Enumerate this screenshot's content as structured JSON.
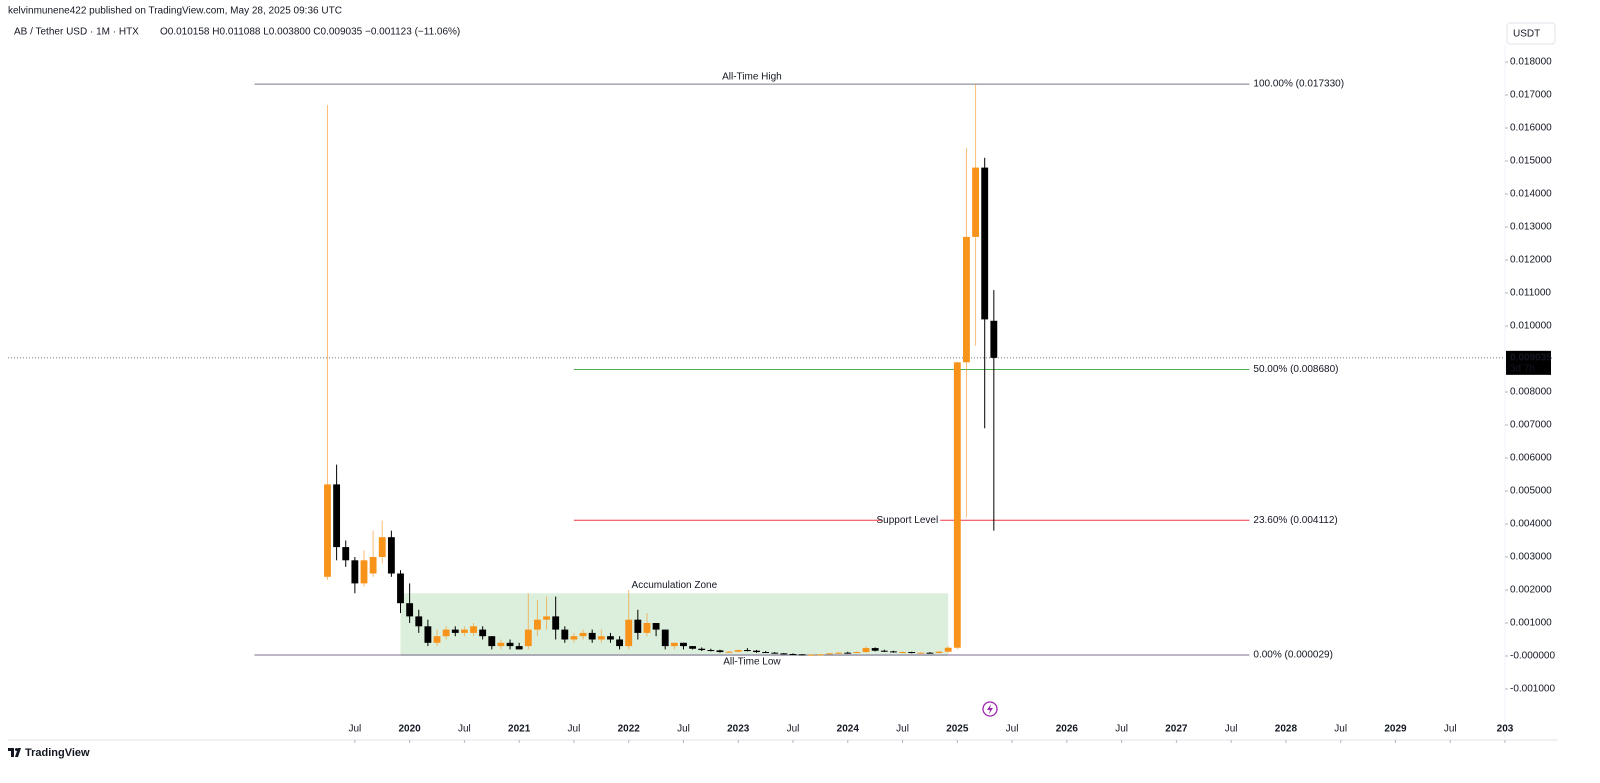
{
  "header": {
    "published": "kelvinmunene422 published on TradingView.com, May 28, 2025 09:36 UTC",
    "symbol": "AB / Tether USD · 1M · HTX",
    "ohlc": "O0.010158 H0.011088 L0.003800 C0.009035 −0.001123 (−11.06%)",
    "currency": "USDT",
    "brand": "TradingView"
  },
  "chart_data": {
    "type": "candlestick",
    "x": [
      "2019-04",
      "2019-05",
      "2019-06",
      "2019-07",
      "2019-08",
      "2019-09",
      "2019-10",
      "2019-11",
      "2019-12",
      "2020-01",
      "2020-02",
      "2020-03",
      "2020-04",
      "2020-05",
      "2020-06",
      "2020-07",
      "2020-08",
      "2020-09",
      "2020-10",
      "2020-11",
      "2020-12",
      "2021-01",
      "2021-02",
      "2021-03",
      "2021-04",
      "2021-05",
      "2021-06",
      "2021-07",
      "2021-08",
      "2021-09",
      "2021-10",
      "2021-11",
      "2021-12",
      "2022-01",
      "2022-02",
      "2022-03",
      "2022-04",
      "2022-05",
      "2022-06",
      "2022-07",
      "2022-08",
      "2022-09",
      "2022-10",
      "2022-11",
      "2022-12",
      "2023-01",
      "2023-02",
      "2023-03",
      "2023-04",
      "2023-05",
      "2023-06",
      "2023-07",
      "2023-08",
      "2023-09",
      "2023-10",
      "2023-11",
      "2023-12",
      "2024-01",
      "2024-02",
      "2024-03",
      "2024-04",
      "2024-05",
      "2024-06",
      "2024-07",
      "2024-08",
      "2024-09",
      "2024-10",
      "2024-11",
      "2024-12",
      "2025-01",
      "2025-02",
      "2025-03",
      "2025-04",
      "2025-05"
    ],
    "open": [
      0.0024,
      0.0052,
      0.0033,
      0.0029,
      0.0022,
      0.0025,
      0.003,
      0.0036,
      0.0025,
      0.0016,
      0.0012,
      0.0009,
      0.0004,
      0.0006,
      0.0008,
      0.0007,
      0.0007,
      0.0008,
      0.0006,
      0.0003,
      0.0004,
      0.0003,
      0.0003,
      0.0008,
      0.0011,
      0.0012,
      0.0008,
      0.0005,
      0.0006,
      0.0007,
      0.0005,
      0.0006,
      0.0005,
      0.0003,
      0.0011,
      0.0007,
      0.001,
      0.0008,
      0.0003,
      0.0004,
      0.0003,
      0.00022,
      0.00018,
      0.00017,
      0.00012,
      0.00013,
      0.00018,
      0.00016,
      0.00012,
      0.0001,
      8e-05,
      6e-05,
      5e-05,
      4e-05,
      4e-05,
      5e-05,
      8e-05,
      0.0001,
      9e-05,
      0.00012,
      0.00024,
      0.00016,
      0.00014,
      0.00011,
      0.00012,
      9e-05,
      0.0001,
      9e-05,
      0.00013,
      0.00025,
      0.0089,
      0.0127,
      0.0148,
      0.010158
    ],
    "high": [
      0.0167,
      0.0058,
      0.0035,
      0.003,
      0.0032,
      0.0038,
      0.0041,
      0.0038,
      0.0026,
      0.0022,
      0.0014,
      0.0011,
      0.0008,
      0.0009,
      0.0009,
      0.0009,
      0.001,
      0.0009,
      0.0006,
      0.0005,
      0.0005,
      0.0004,
      0.0019,
      0.0017,
      0.0018,
      0.0018,
      0.0009,
      0.0007,
      0.0008,
      0.0008,
      0.0008,
      0.0007,
      0.0006,
      0.002,
      0.0014,
      0.0013,
      0.001,
      0.0008,
      0.0004,
      0.0004,
      0.0003,
      0.00026,
      0.00022,
      0.00019,
      0.00015,
      0.0002,
      0.00024,
      0.00018,
      0.00015,
      0.00012,
      9e-05,
      8e-05,
      6e-05,
      5e-05,
      6e-05,
      9e-05,
      0.00012,
      0.00013,
      0.00014,
      0.0003,
      0.00026,
      0.00019,
      0.00016,
      0.00014,
      0.00013,
      0.00012,
      0.00012,
      0.00015,
      0.0003,
      0.0089,
      0.0154,
      0.01733,
      0.0151,
      0.011088
    ],
    "low": [
      0.0023,
      0.0029,
      0.0027,
      0.0019,
      0.0021,
      0.0024,
      0.0028,
      0.0024,
      0.0013,
      0.001,
      0.0007,
      0.0003,
      0.0003,
      0.0005,
      0.0006,
      0.0006,
      0.0006,
      0.0005,
      0.0002,
      0.0002,
      0.0002,
      0.0002,
      0.0002,
      0.0006,
      0.0008,
      0.0005,
      0.0004,
      0.0004,
      0.0005,
      0.0004,
      0.0004,
      0.0004,
      0.0002,
      0.0002,
      0.0005,
      0.0006,
      0.0006,
      0.0002,
      0.0002,
      0.0002,
      0.0002,
      0.00015,
      0.00014,
      0.0001,
      0.0001,
      0.00011,
      0.00014,
      0.0001,
      9e-05,
      7e-05,
      5e-05,
      4e-05,
      2.9e-05,
      3e-05,
      3e-05,
      4e-05,
      6e-05,
      7e-05,
      8e-05,
      0.0001,
      0.00014,
      0.00012,
      0.0001,
      9e-05,
      8e-05,
      8e-05,
      8e-05,
      8e-05,
      0.0001,
      0.0002,
      0.0042,
      0.0094,
      0.0069,
      0.0038
    ],
    "close": [
      0.0052,
      0.0033,
      0.0029,
      0.0022,
      0.0029,
      0.003,
      0.0036,
      0.0025,
      0.0016,
      0.0012,
      0.0009,
      0.0004,
      0.0006,
      0.0008,
      0.0007,
      0.0008,
      0.0009,
      0.0006,
      0.0003,
      0.0004,
      0.0003,
      0.0002,
      0.0008,
      0.0011,
      0.0012,
      0.0008,
      0.0005,
      0.0006,
      0.0007,
      0.0005,
      0.0006,
      0.0005,
      0.0003,
      0.0011,
      0.0007,
      0.001,
      0.0008,
      0.0003,
      0.0004,
      0.0003,
      0.00022,
      0.00018,
      0.00017,
      0.00012,
      0.00013,
      0.00018,
      0.00016,
      0.00012,
      0.0001,
      8e-05,
      6e-05,
      5e-05,
      4e-05,
      4e-05,
      5e-05,
      8e-05,
      0.0001,
      9e-05,
      0.00012,
      0.00024,
      0.00016,
      0.00014,
      0.00011,
      0.00012,
      9e-05,
      0.0001,
      9e-05,
      0.00013,
      0.00025,
      0.0089,
      0.0127,
      0.0148,
      0.0102,
      0.009035
    ],
    "up_color": "#f7931a",
    "down_color": "#000000",
    "xlim": [
      "2016-05",
      "2030-01"
    ],
    "xticks": [
      {
        "value": "2019-07",
        "label": "Jul"
      },
      {
        "value": "2020-01",
        "label": "2020"
      },
      {
        "value": "2020-07",
        "label": "Jul"
      },
      {
        "value": "2021-01",
        "label": "2021"
      },
      {
        "value": "2021-07",
        "label": "Jul"
      },
      {
        "value": "2022-01",
        "label": "2022"
      },
      {
        "value": "2022-07",
        "label": "Jul"
      },
      {
        "value": "2023-01",
        "label": "2023"
      },
      {
        "value": "2023-07",
        "label": "Jul"
      },
      {
        "value": "2024-01",
        "label": "2024"
      },
      {
        "value": "2024-07",
        "label": "Jul"
      },
      {
        "value": "2025-01",
        "label": "2025"
      },
      {
        "value": "2025-07",
        "label": "Jul"
      },
      {
        "value": "2026-01",
        "label": "2026"
      },
      {
        "value": "2026-07",
        "label": "Jul"
      },
      {
        "value": "2027-01",
        "label": "2027"
      },
      {
        "value": "2027-07",
        "label": "Jul"
      },
      {
        "value": "2028-01",
        "label": "2028"
      },
      {
        "value": "2028-07",
        "label": "Jul"
      },
      {
        "value": "2029-01",
        "label": "2029"
      },
      {
        "value": "2029-07",
        "label": "Jul"
      },
      {
        "value": "2030-01",
        "label": "203"
      }
    ],
    "ylim": [
      -0.001788,
      0.018515
    ],
    "yticks": [
      {
        "value": 0.018,
        "label": "0.018000"
      },
      {
        "value": 0.017,
        "label": "0.017000"
      },
      {
        "value": 0.016,
        "label": "0.016000"
      },
      {
        "value": 0.015,
        "label": "0.015000"
      },
      {
        "value": 0.014,
        "label": "0.014000"
      },
      {
        "value": 0.013,
        "label": "0.013000"
      },
      {
        "value": 0.012,
        "label": "0.012000"
      },
      {
        "value": 0.011,
        "label": "0.011000"
      },
      {
        "value": 0.01,
        "label": "0.010000"
      },
      {
        "value": 0.008,
        "label": "0.008000"
      },
      {
        "value": 0.007,
        "label": "0.007000"
      },
      {
        "value": 0.006,
        "label": "0.006000"
      },
      {
        "value": 0.005,
        "label": "0.005000"
      },
      {
        "value": 0.004,
        "label": "0.004000"
      },
      {
        "value": 0.003,
        "label": "0.003000"
      },
      {
        "value": 0.002,
        "label": "0.002000"
      },
      {
        "value": 0.001,
        "label": "0.001000"
      },
      {
        "value": 0,
        "label": "-0.000000"
      },
      {
        "value": -0.001,
        "label": "-0.001000"
      }
    ],
    "fib_levels": [
      {
        "value": 0.01733,
        "label": "100.00% (0.017330)",
        "annotation": "All-Time High",
        "color": "#787b86",
        "x": [
          "2018-08",
          "2027-09"
        ]
      },
      {
        "value": 0.00868,
        "label": "50.00% (0.008680)",
        "color": "#4caf50",
        "x": [
          "2021-07",
          "2027-09"
        ]
      },
      {
        "value": 0.004112,
        "label": "23.60% (0.004112)",
        "annotation": "Support Level",
        "color": "#f23645",
        "x": [
          "2021-07",
          "2027-09"
        ]
      },
      {
        "value": 2.9e-05,
        "label": "0.00% (0.000029)",
        "annotation": "All-Time Low",
        "color": "#7e6b8f",
        "x": [
          "2018-08",
          "2027-09"
        ]
      }
    ],
    "zone": {
      "label": "Accumulation Zone",
      "x": [
        "2019-12",
        "2024-12"
      ],
      "ylim": [
        0,
        0.0019
      ],
      "color": "#4caf50"
    },
    "last_price": {
      "value": 0.009035,
      "countdown": "3d 7h"
    }
  }
}
